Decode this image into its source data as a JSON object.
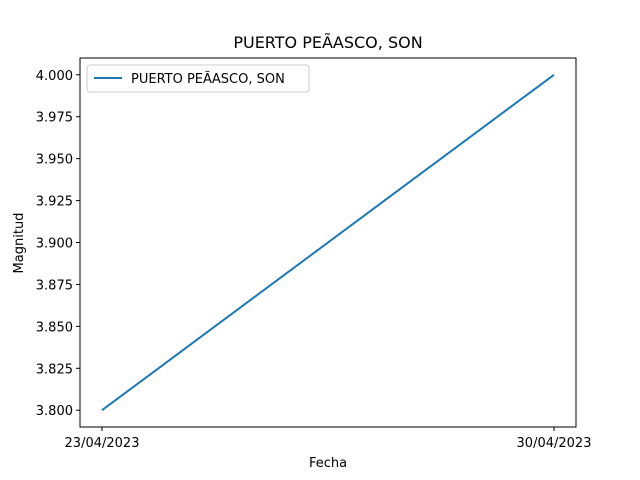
{
  "chart_data": {
    "type": "line",
    "title": "PUERTO PEÃ\u0011ASCO, SON",
    "xlabel": "Fecha",
    "ylabel": "Magnitud",
    "categories": [
      "23/04/2023",
      "30/04/2023"
    ],
    "series": [
      {
        "name": "PUERTO PEÃ\u0011ASCO, SON",
        "values": [
          3.8,
          4.0
        ],
        "color": "#1f77b4"
      }
    ],
    "ylim": [
      3.79,
      4.01
    ],
    "yticks": [
      "3.800",
      "3.825",
      "3.850",
      "3.875",
      "3.900",
      "3.925",
      "3.950",
      "3.975",
      "4.000"
    ],
    "grid": false,
    "legend_position": "upper-left"
  }
}
